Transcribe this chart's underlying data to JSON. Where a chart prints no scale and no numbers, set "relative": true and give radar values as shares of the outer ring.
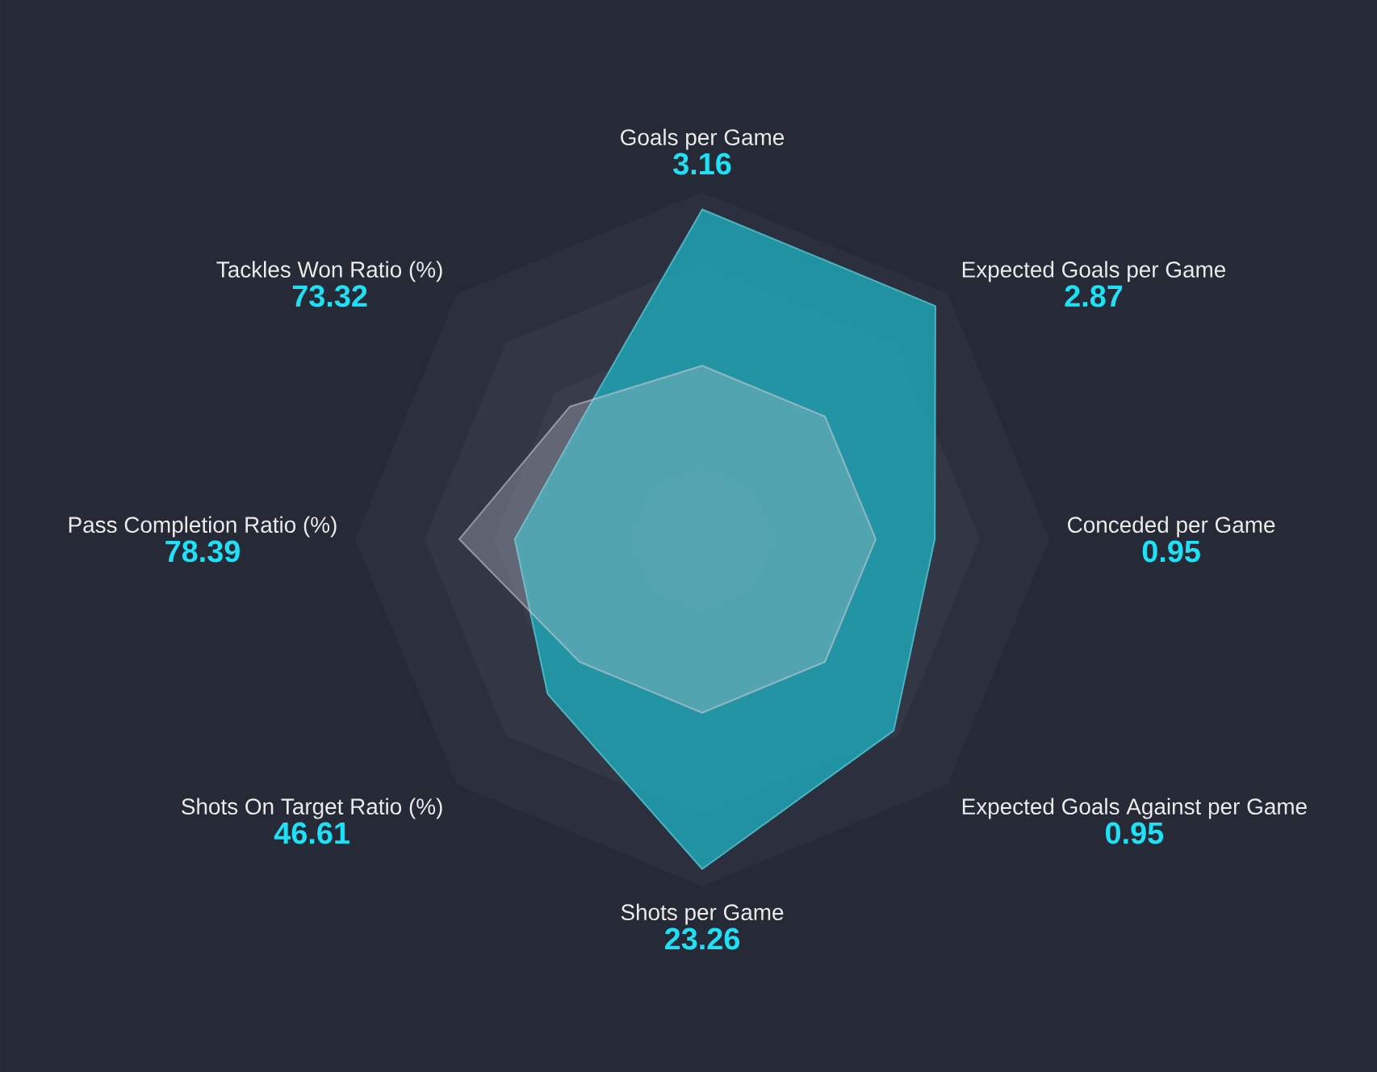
{
  "chart_data": {
    "type": "radar",
    "relative": true,
    "grid": true,
    "categories": [
      "Goals per Game",
      "Expected Goals per Game",
      "Conceded per Game",
      "Expected Goals Against per Game",
      "Shots per Game",
      "Shots On Target Ratio (%)",
      "Pass Completion Ratio (%)",
      "Tackles Won Ratio (%)"
    ],
    "annotations": [
      "3.16",
      "2.87",
      "0.95",
      "0.95",
      "23.26",
      "46.61",
      "78.39",
      "73.32"
    ],
    "series": [
      {
        "color": "#1fa3b3",
        "values": [
          0.95,
          0.95,
          0.67,
          0.78,
          0.95,
          0.63,
          0.54,
          0.49
        ]
      },
      {
        "color": "#c8cad4",
        "values": [
          0.5,
          0.5,
          0.5,
          0.5,
          0.5,
          0.5,
          0.7,
          0.54
        ]
      }
    ]
  }
}
